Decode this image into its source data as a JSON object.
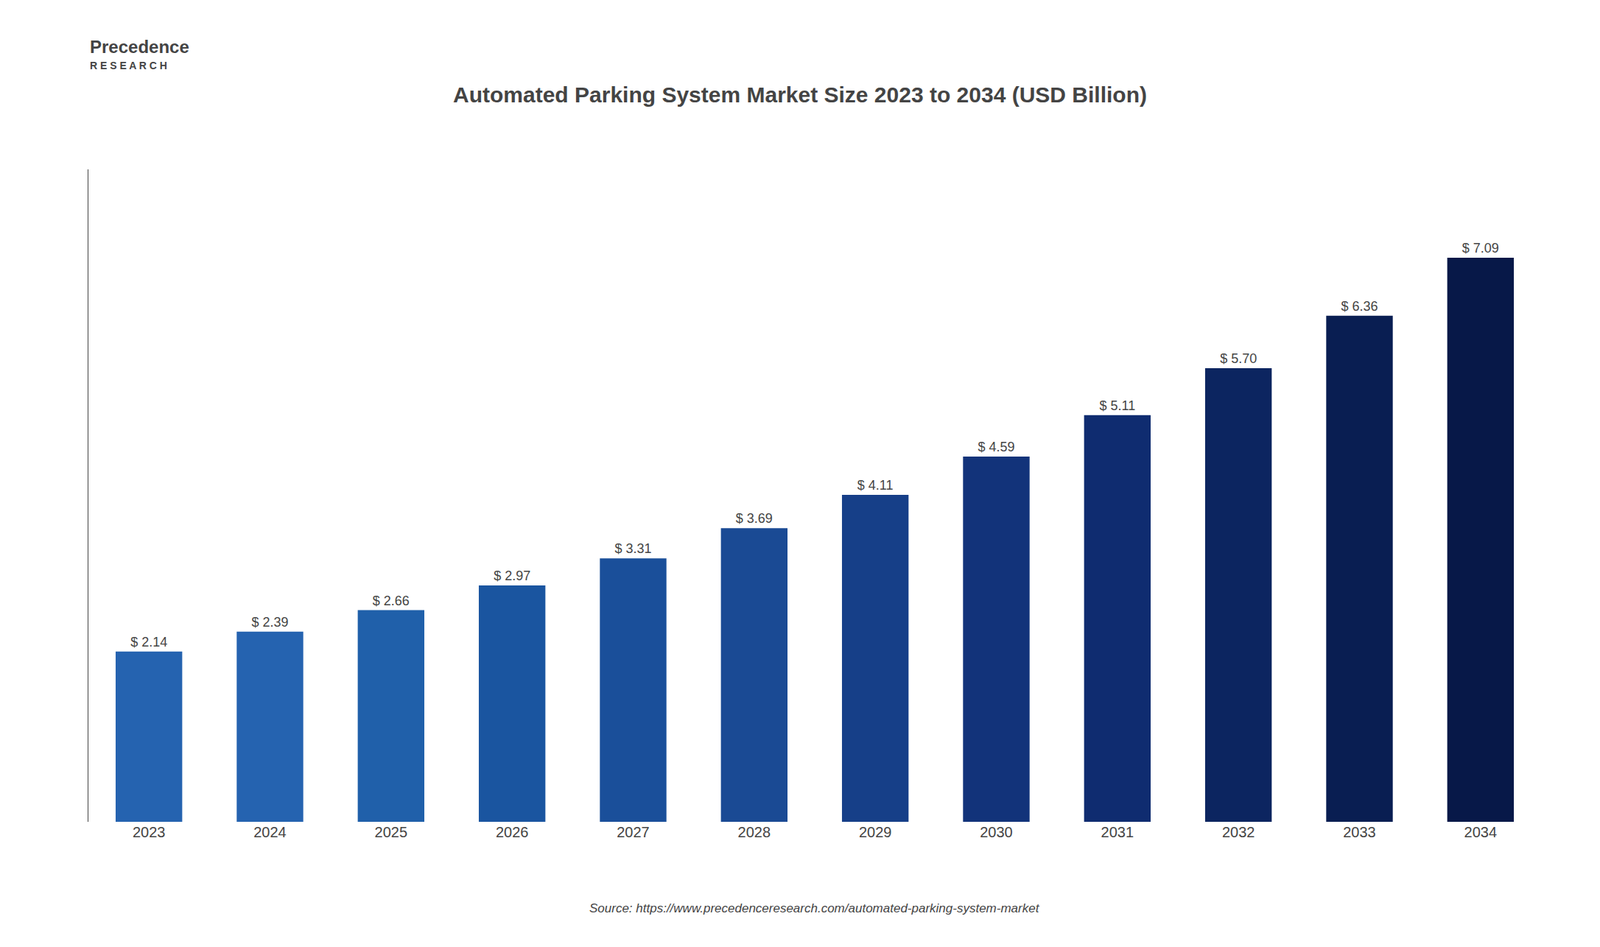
{
  "chart_data": {
    "type": "bar",
    "title": "Automated Parking System Market Size 2023 to 2034 (USD Billion)",
    "categories": [
      "2023",
      "2024",
      "2025",
      "2026",
      "2027",
      "2028",
      "2029",
      "2030",
      "2031",
      "2032",
      "2033",
      "2034"
    ],
    "values": [
      2.14,
      2.39,
      2.66,
      2.97,
      3.31,
      3.69,
      4.11,
      4.59,
      5.11,
      5.7,
      6.36,
      7.09
    ],
    "value_labels": [
      "$ 2.14",
      "$ 2.39",
      "$ 2.66",
      "$ 2.97",
      "$ 3.31",
      "$ 3.69",
      "$ 4.11",
      "$ 4.59",
      "$ 5.11",
      "$ 5.70",
      "$ 6.36",
      "$ 7.09"
    ],
    "data_labels": true,
    "colors": [
      "#2563b0",
      "#2563b0",
      "#2060aa",
      "#1a55a0",
      "#1a4f9a",
      "#1a4a94",
      "#163f88",
      "#12337a",
      "#0f2c70",
      "#0c2560",
      "#091e52",
      "#071848"
    ],
    "ylim": [
      0,
      8.2
    ],
    "tick_labels": "x",
    "grid": false,
    "annotations": [
      "Precedence",
      "R E S E A R C H",
      "Source: https://www.precedenceresearch.com/automated-parking-system-market"
    ]
  }
}
